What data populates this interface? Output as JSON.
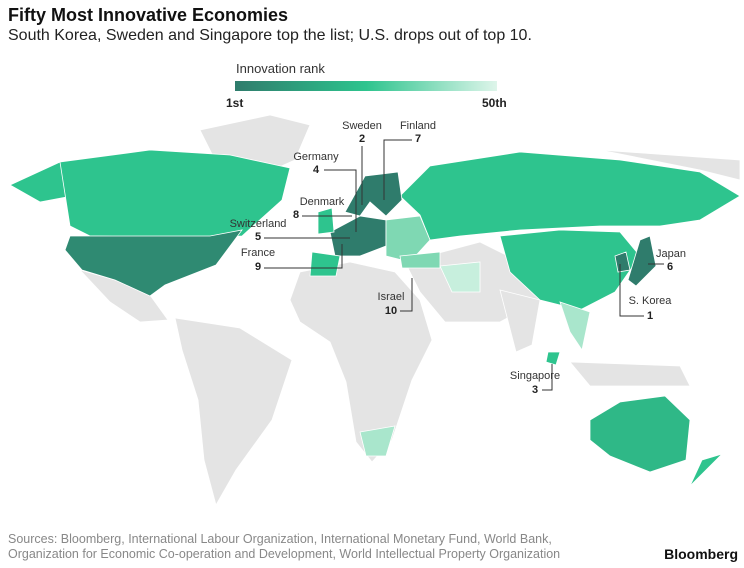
{
  "title": "Fifty Most Innovative Economies",
  "subtitle": "South Korea, Sweden and Singapore top the list; U.S. drops out of top 10.",
  "legend": {
    "title": "Innovation rank",
    "low": "1st",
    "high": "50th",
    "colors": [
      "#2f7c6c",
      "#2ec48e",
      "#def5ea"
    ]
  },
  "colors": {
    "no_data": "#e4e4e4",
    "dark": "#2f7c6c",
    "mid": "#2ec48e",
    "light": "#a9e6cc"
  },
  "annotations": [
    {
      "country": "S. Korea",
      "rank": "1"
    },
    {
      "country": "Sweden",
      "rank": "2"
    },
    {
      "country": "Singapore",
      "rank": "3"
    },
    {
      "country": "Germany",
      "rank": "4"
    },
    {
      "country": "Switzerland",
      "rank": "5"
    },
    {
      "country": "Japan",
      "rank": "6"
    },
    {
      "country": "Finland",
      "rank": "7"
    },
    {
      "country": "Denmark",
      "rank": "8"
    },
    {
      "country": "France",
      "rank": "9"
    },
    {
      "country": "Israel",
      "rank": "10"
    }
  ],
  "sources": [
    "Sources: Bloomberg, International Labour Organization, International Monetary Fund, World Bank,",
    "Organization for Economic Co-operation and Development, World Intellectual Property Organization"
  ],
  "logo": "Bloomberg"
}
